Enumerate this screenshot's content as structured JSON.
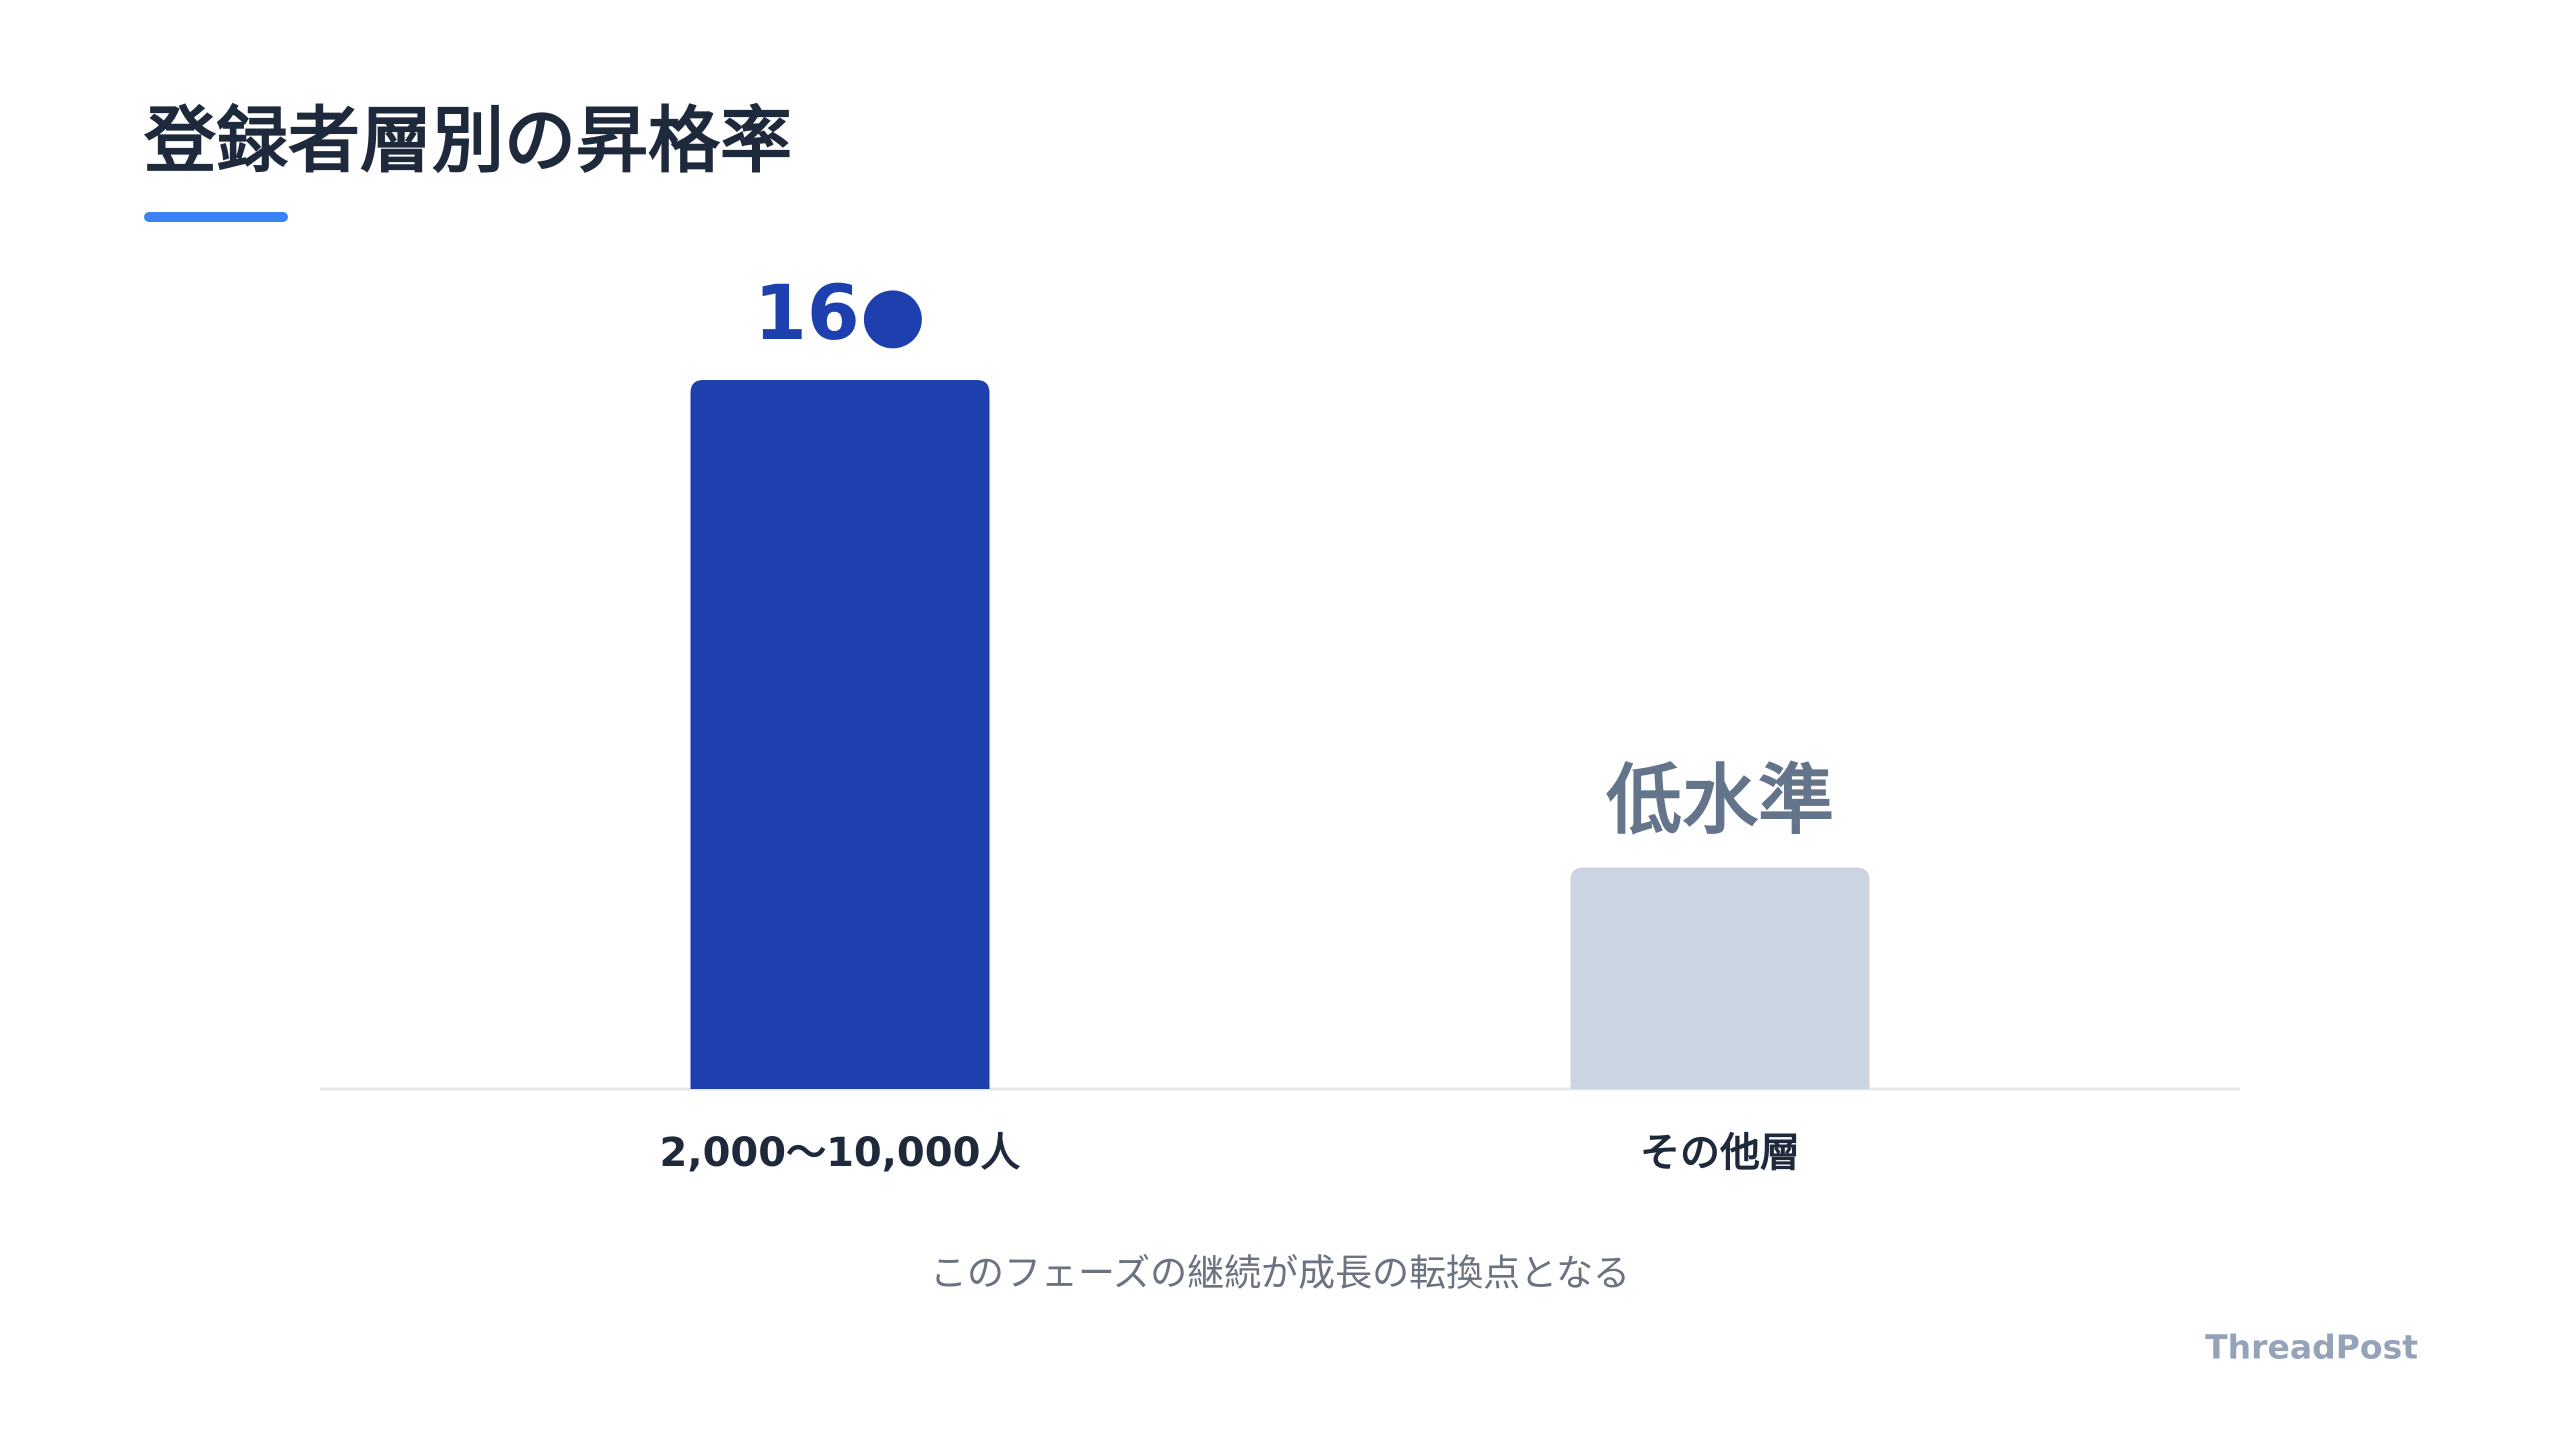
{
  "chart_data": {
    "type": "bar",
    "title": "登録者層別の昇格率",
    "categories": [
      "2,000〜10,000人",
      "その他層"
    ],
    "values": [
      16,
      5
    ],
    "value_labels": [
      "16●",
      "低水準"
    ],
    "colors": [
      "#1e40af",
      "#cbd5e1"
    ],
    "value_label_colors": [
      "#1e40af",
      "#64748b"
    ],
    "caption": "このフェーズの継続が成長の転換点となる"
  },
  "brand": "ThreadPost"
}
